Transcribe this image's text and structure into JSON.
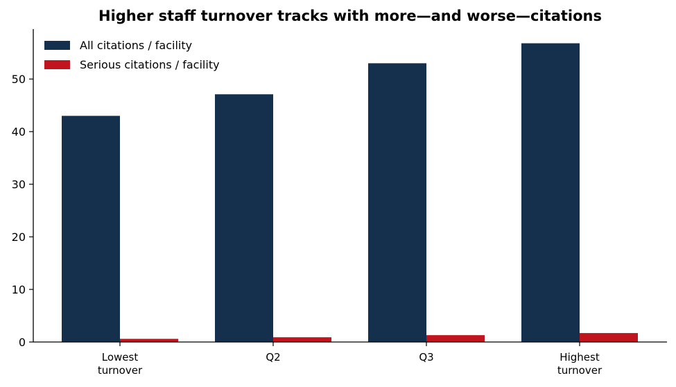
{
  "chart_data": {
    "type": "bar",
    "title": "Higher staff turnover tracks with more—and worse—citations",
    "xlabel": "",
    "ylabel": "",
    "categories": [
      [
        "Lowest",
        "turnover"
      ],
      [
        "Q2"
      ],
      [
        "Q3"
      ],
      [
        "Highest",
        "turnover"
      ]
    ],
    "series": [
      {
        "name": "All citations / facility",
        "color": "#15304d",
        "values": [
          43.0,
          47.1,
          53.0,
          56.8
        ]
      },
      {
        "name": "Serious citations / facility",
        "color": "#c0141e",
        "values": [
          0.6,
          0.9,
          1.3,
          1.7
        ]
      }
    ],
    "ylim": [
      0,
      59.5
    ],
    "yticks": [
      0,
      10,
      20,
      30,
      40,
      50
    ],
    "grid": false,
    "legend_position": "top-left"
  }
}
